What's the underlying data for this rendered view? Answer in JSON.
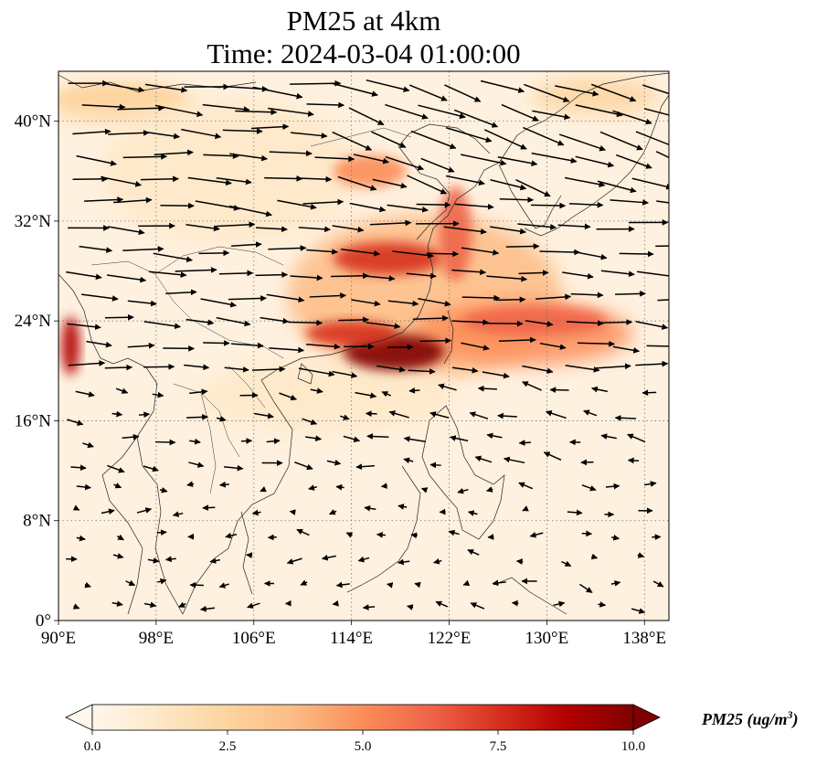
{
  "title": {
    "line1": "PM25 at 4km",
    "line2": "Time: 2024-03-04 01:00:00"
  },
  "map": {
    "projection": "PlateCarree",
    "lon_range": [
      90,
      140
    ],
    "lat_range": [
      0,
      44
    ],
    "gridlines": "dotted",
    "lon_ticks": [
      {
        "value": 90,
        "label": "90°E"
      },
      {
        "value": 98,
        "label": "98°E"
      },
      {
        "value": 106,
        "label": "106°E"
      },
      {
        "value": 114,
        "label": "114°E"
      },
      {
        "value": 122,
        "label": "122°E"
      },
      {
        "value": 130,
        "label": "130°E"
      },
      {
        "value": 138,
        "label": "138°E"
      }
    ],
    "lat_ticks": [
      {
        "value": 0,
        "label": "0°"
      },
      {
        "value": 8,
        "label": "8°N"
      },
      {
        "value": 16,
        "label": "16°N"
      },
      {
        "value": 24,
        "label": "24°N"
      },
      {
        "value": 32,
        "label": "32°N"
      },
      {
        "value": 40,
        "label": "40°N"
      }
    ],
    "plume_regions": [
      {
        "name": "east-china-core",
        "lon": 117.5,
        "lat": 21.5,
        "level": 10.0
      },
      {
        "name": "south-china-coast",
        "lon": 114,
        "lat": 23,
        "level": 8.0
      },
      {
        "name": "yangtze-band",
        "lon": 117,
        "lat": 29,
        "level": 7.0
      },
      {
        "name": "yellow-sea-band",
        "lon": 122.5,
        "lat": 31,
        "level": 6.0
      },
      {
        "name": "pacific-stream",
        "lon": 129,
        "lat": 24,
        "level": 6.5
      },
      {
        "name": "north-china",
        "lon": 115.5,
        "lat": 36,
        "level": 4.5
      },
      {
        "name": "bay-of-bengal-edge",
        "lon": 91,
        "lat": 22,
        "level": 8.5
      },
      {
        "name": "tibet-west",
        "lon": 95,
        "lat": 42,
        "level": 3.0
      }
    ],
    "wind_field": "westerly arrows, strongest north of 20°N"
  },
  "colorbar": {
    "colormap": "OrRd",
    "colors": [
      "#fff7ec",
      "#fee8c8",
      "#fdd49e",
      "#fdbb84",
      "#fc8d59",
      "#ef6548",
      "#d7301f",
      "#b30000",
      "#7f0000"
    ],
    "range": [
      0.0,
      10.0
    ],
    "extend": "both",
    "ticks": [
      {
        "value": 0.0,
        "label": "0.0"
      },
      {
        "value": 2.5,
        "label": "2.5"
      },
      {
        "value": 5.0,
        "label": "5.0"
      },
      {
        "value": 7.5,
        "label": "7.5"
      },
      {
        "value": 10.0,
        "label": "10.0"
      }
    ],
    "label_prefix": "PM25 (ug/m",
    "label_exponent": "3",
    "label_suffix": ")"
  }
}
